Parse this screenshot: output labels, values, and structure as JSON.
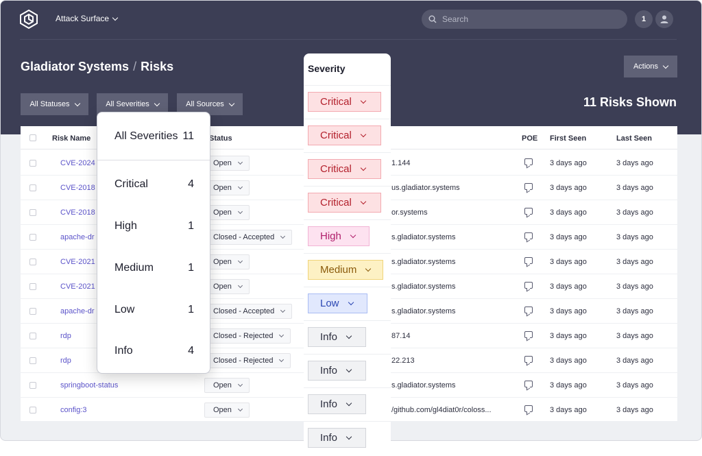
{
  "app": {
    "switcher_label": "Attack Surface"
  },
  "search": {
    "placeholder": "Search"
  },
  "notifications": {
    "count": "1"
  },
  "breadcrumb": {
    "org": "Gladiator Systems",
    "sep": "/",
    "page": "Risks"
  },
  "actions_label": "Actions",
  "filters": {
    "statuses": "All Statuses",
    "severities": "All Severities",
    "sources": "All Sources"
  },
  "count_label": "11 Risks Shown",
  "columns": {
    "risk_name": "Risk Name",
    "status": "Status",
    "poe": "POE",
    "first_seen": "First Seen",
    "last_seen": "Last Seen"
  },
  "rows": [
    {
      "name": "CVE-2024",
      "status": "Open",
      "asset": "1.144",
      "first": "3 days ago",
      "last": "3 days ago"
    },
    {
      "name": "CVE-2018",
      "status": "Open",
      "asset": "us.gladiator.systems",
      "first": "3 days ago",
      "last": "3 days ago"
    },
    {
      "name": "CVE-2018",
      "status": "Open",
      "asset": "or.systems",
      "first": "3 days ago",
      "last": "3 days ago"
    },
    {
      "name": "apache-dr",
      "status": "Closed - Accepted",
      "asset": "s.gladiator.systems",
      "first": "3 days ago",
      "last": "3 days ago"
    },
    {
      "name": "CVE-2021",
      "status": "Open",
      "asset": "s.gladiator.systems",
      "first": "3 days ago",
      "last": "3 days ago"
    },
    {
      "name": "CVE-2021",
      "status": "Open",
      "asset": "s.gladiator.systems",
      "first": "3 days ago",
      "last": "3 days ago"
    },
    {
      "name": "apache-dr",
      "status": "Closed - Accepted",
      "asset": "s.gladiator.systems",
      "first": "3 days ago",
      "last": "3 days ago"
    },
    {
      "name": "rdp",
      "status": "Closed - Rejected",
      "asset": "87.14",
      "first": "3 days ago",
      "last": "3 days ago"
    },
    {
      "name": "rdp",
      "status": "Closed - Rejected",
      "asset": "22.213",
      "first": "3 days ago",
      "last": "3 days ago"
    },
    {
      "name": "springboot-status",
      "status": "Open",
      "asset": "s.gladiator.systems",
      "first": "3 days ago",
      "last": "3 days ago"
    },
    {
      "name": "config:3",
      "status": "Open",
      "asset": "/github.com/gl4diat0r/coloss...",
      "first": "3 days ago",
      "last": "3 days ago"
    }
  ],
  "severity_dropdown": [
    {
      "label": "All Severities",
      "count": "11"
    },
    {
      "label": "Critical",
      "count": "4"
    },
    {
      "label": "High",
      "count": "1"
    },
    {
      "label": "Medium",
      "count": "1"
    },
    {
      "label": "Low",
      "count": "1"
    },
    {
      "label": "Info",
      "count": "4"
    }
  ],
  "severity_column": {
    "title": "Severity",
    "badges": [
      {
        "label": "Critical",
        "bg": "#fde1e3",
        "border": "#f3a9b0",
        "color": "#b3202c"
      },
      {
        "label": "Critical",
        "bg": "#fde1e3",
        "border": "#f3a9b0",
        "color": "#b3202c"
      },
      {
        "label": "Critical",
        "bg": "#fde1e3",
        "border": "#f3a9b0",
        "color": "#b3202c"
      },
      {
        "label": "Critical",
        "bg": "#fde1e3",
        "border": "#f3a9b0",
        "color": "#b3202c"
      },
      {
        "label": "High",
        "bg": "#fde2f0",
        "border": "#f2b3d5",
        "color": "#b01f6b"
      },
      {
        "label": "Medium",
        "bg": "#fdf1c4",
        "border": "#f0d47a",
        "color": "#8a5a0b"
      },
      {
        "label": "Low",
        "bg": "#e1e8fd",
        "border": "#a9bcf3",
        "color": "#2b47b3"
      },
      {
        "label": "Info",
        "bg": "#f1f2f4",
        "border": "#d3d5da",
        "color": "#2c2e3e"
      },
      {
        "label": "Info",
        "bg": "#f1f2f4",
        "border": "#d3d5da",
        "color": "#2c2e3e"
      },
      {
        "label": "Info",
        "bg": "#f1f2f4",
        "border": "#d3d5da",
        "color": "#2c2e3e"
      },
      {
        "label": "Info",
        "bg": "#f1f2f4",
        "border": "#d3d5da",
        "color": "#2c2e3e"
      }
    ]
  }
}
